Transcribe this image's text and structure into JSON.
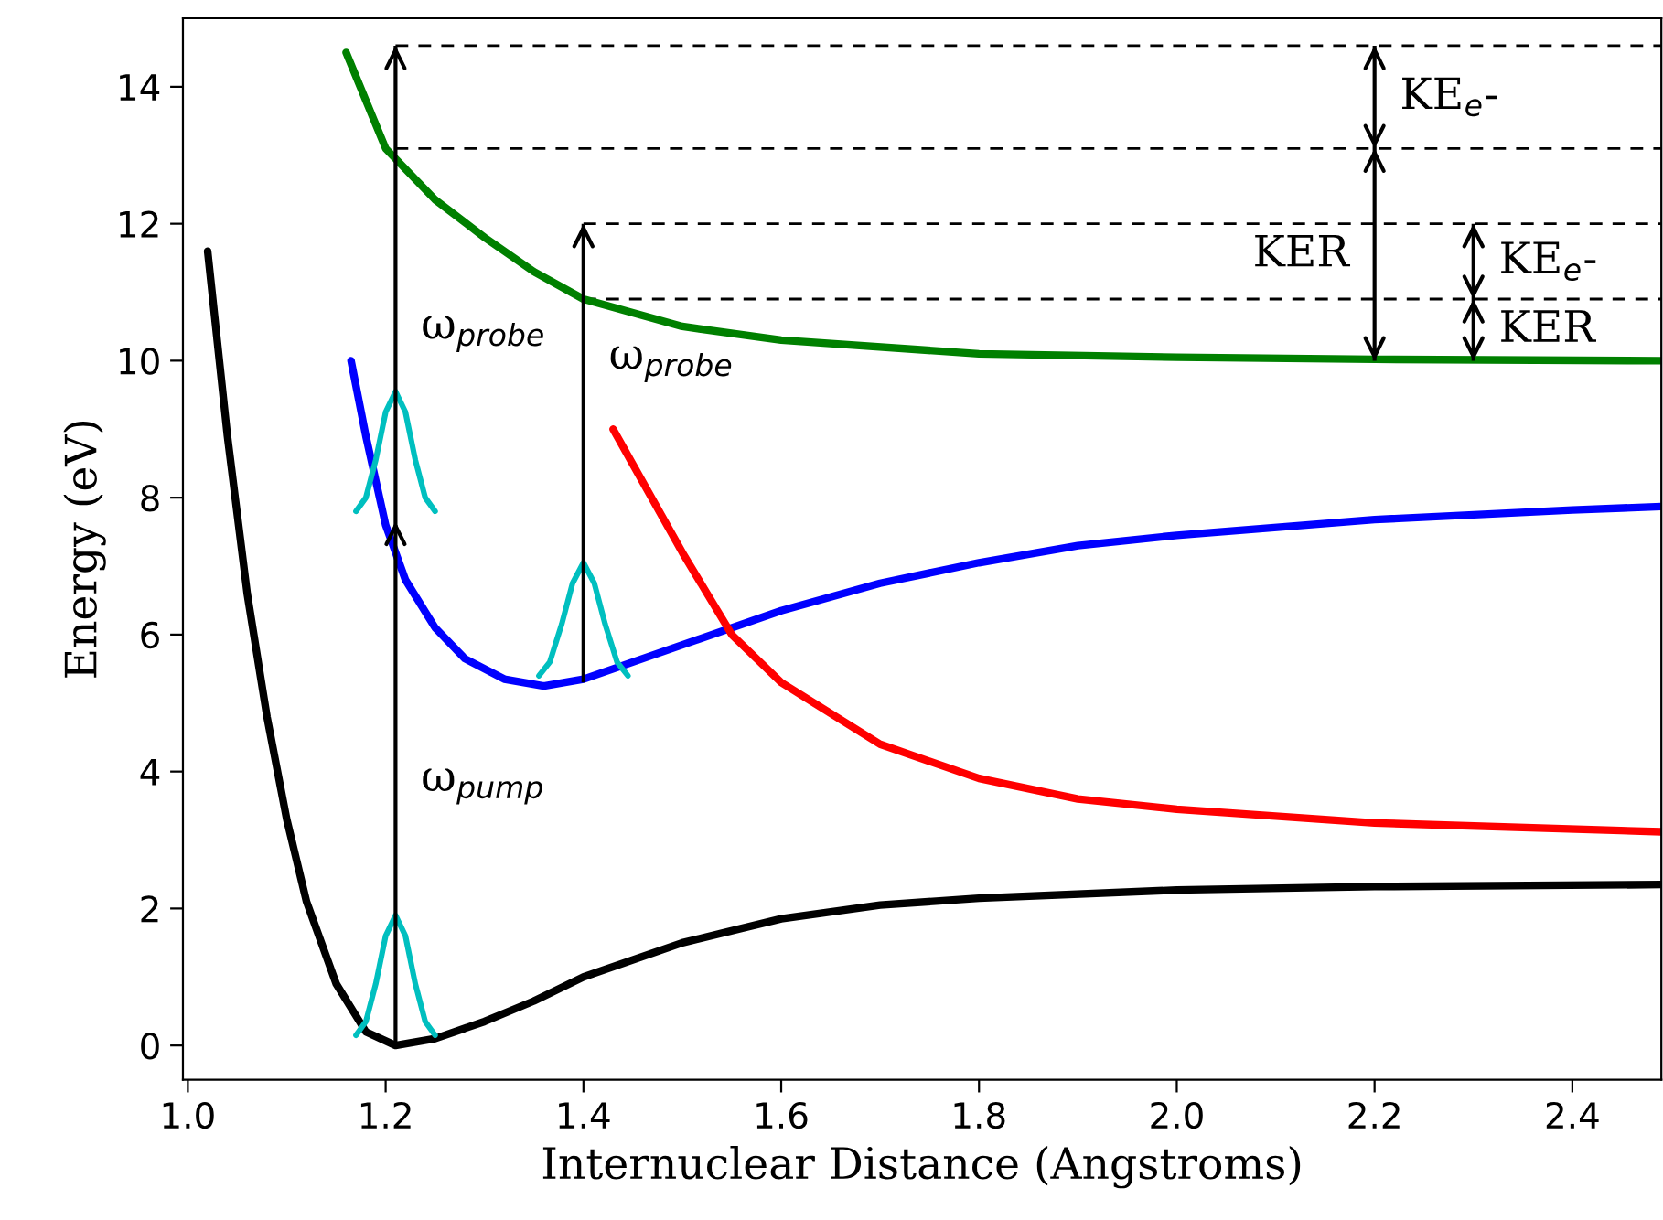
{
  "chart_data": {
    "type": "line",
    "xlabel": "Internuclear Distance (Angstroms)",
    "ylabel": "Energy (eV)",
    "xlim": [
      0.995,
      2.49
    ],
    "ylim": [
      -0.5,
      15
    ],
    "xticks": [
      {
        "value": 1,
        "label": "1.0"
      },
      1.2,
      1.4,
      1.6,
      1.8,
      {
        "value": 2,
        "label": "2.0"
      },
      2.2,
      2.4
    ],
    "yticks": [
      0,
      2,
      4,
      6,
      8,
      10,
      12,
      14
    ],
    "grid": false,
    "legend": false,
    "series": [
      {
        "color": "#000000",
        "x": [
          1.02,
          1.04,
          1.06,
          1.08,
          1.1,
          1.12,
          1.15,
          1.18,
          1.21,
          1.25,
          1.3,
          1.35,
          1.4,
          1.5,
          1.6,
          1.7,
          1.8,
          2.0,
          2.2,
          2.49
        ],
        "values": [
          11.6,
          8.9,
          6.6,
          4.8,
          3.3,
          2.1,
          0.9,
          0.2,
          0,
          0.1,
          0.35,
          0.65,
          1.0,
          1.5,
          1.85,
          2.05,
          2.15,
          2.27,
          2.32,
          2.35
        ]
      },
      {
        "color": "#0000ff",
        "x": [
          1.165,
          1.18,
          1.2,
          1.22,
          1.25,
          1.28,
          1.32,
          1.36,
          1.4,
          1.45,
          1.5,
          1.6,
          1.7,
          1.8,
          1.9,
          2.0,
          2.2,
          2.4,
          2.49
        ],
        "values": [
          10.0,
          8.9,
          7.6,
          6.8,
          6.1,
          5.65,
          5.35,
          5.25,
          5.35,
          5.6,
          5.85,
          6.35,
          6.75,
          7.05,
          7.3,
          7.45,
          7.68,
          7.82,
          7.87
        ]
      },
      {
        "color": "#ff0000",
        "x": [
          1.43,
          1.5,
          1.55,
          1.6,
          1.7,
          1.8,
          1.9,
          2.0,
          2.2,
          2.49
        ],
        "values": [
          9.0,
          7.2,
          6.0,
          5.3,
          4.4,
          3.9,
          3.6,
          3.45,
          3.25,
          3.12
        ]
      },
      {
        "color": "#008000",
        "x": [
          1.16,
          1.2,
          1.25,
          1.3,
          1.35,
          1.4,
          1.5,
          1.6,
          1.8,
          2.0,
          2.2,
          2.49
        ],
        "values": [
          14.5,
          13.1,
          12.35,
          11.8,
          11.3,
          10.9,
          10.5,
          10.3,
          10.1,
          10.05,
          10.02,
          10.0
        ]
      },
      {
        "color": "#00bfbf",
        "x": [
          1.17,
          1.18,
          1.19,
          1.2,
          1.21,
          1.22,
          1.23,
          1.24,
          1.25
        ],
        "values": [
          0.15,
          0.35,
          0.9,
          1.6,
          1.9,
          1.6,
          0.9,
          0.35,
          0.15
        ]
      },
      {
        "color": "#00bfbf",
        "x": [
          1.17,
          1.18,
          1.19,
          1.2,
          1.21,
          1.22,
          1.23,
          1.24,
          1.25
        ],
        "values": [
          7.8,
          8.0,
          8.55,
          9.25,
          9.55,
          9.25,
          8.55,
          8.0,
          7.8
        ]
      },
      {
        "color": "#00bfbf",
        "x": [
          1.355,
          1.366,
          1.378,
          1.389,
          1.4,
          1.411,
          1.422,
          1.434,
          1.445
        ],
        "values": [
          5.4,
          5.6,
          6.15,
          6.75,
          7.05,
          6.75,
          6.15,
          5.6,
          5.4
        ]
      },
      {
        "color": "#000000",
        "line_style": "dashed",
        "x": [
          1.21,
          2.49
        ],
        "values": [
          14.6,
          14.6
        ]
      },
      {
        "color": "#000000",
        "line_style": "dashed",
        "x": [
          1.21,
          2.49
        ],
        "values": [
          13.1,
          13.1
        ]
      },
      {
        "color": "#000000",
        "line_style": "dashed",
        "x": [
          1.4,
          2.49
        ],
        "values": [
          12.0,
          12.0
        ]
      },
      {
        "color": "#000000",
        "line_style": "dashed",
        "x": [
          1.4,
          2.49
        ],
        "values": [
          10.9,
          10.9
        ]
      },
      {
        "color": "#000000",
        "x": [
          1.21,
          1.21,
          1.21
        ],
        "values": [
          0,
          7.65,
          14.6
        ]
      },
      {
        "color": "#000000",
        "x": [
          1.4,
          1.4,
          1.4
        ],
        "values": [
          5.3,
          10.9,
          12.0
        ]
      },
      {
        "color": "#000000",
        "x": [
          2.2,
          2.2,
          2.2
        ],
        "values": [
          14.6,
          13.1,
          10.0
        ]
      },
      {
        "color": "#000000",
        "x": [
          2.3,
          2.3,
          2.3
        ],
        "values": [
          12.0,
          10.9,
          10.0
        ]
      }
    ],
    "annotations": [
      "ω$_{pump}$",
      "ω$_{probe}$",
      "ω$_{probe}$",
      "KE$_{e}$-",
      "KER",
      "KE$_{e}$-",
      "KER"
    ]
  }
}
